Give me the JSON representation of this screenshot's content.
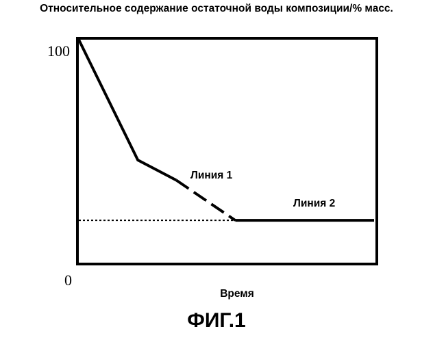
{
  "chart_data": {
    "type": "line",
    "ylabel": "Относительное содержание остаточной воды композиции/% масс.",
    "xlabel": "Время",
    "caption": "ФИГ.1",
    "y_tick_labels": [
      "100",
      "0"
    ],
    "ylim": [
      0,
      100
    ],
    "xlim": [
      0,
      100
    ],
    "grid": false,
    "series": [
      {
        "name": "Линия 1",
        "segments": [
          {
            "style": "solid",
            "points": [
              [
                0,
                100
              ],
              [
                20,
                46
              ],
              [
                33,
                37
              ]
            ]
          },
          {
            "style": "dashed",
            "points": [
              [
                33,
                37
              ],
              [
                53,
                19
              ]
            ]
          }
        ]
      },
      {
        "name": "Линия 2",
        "segments": [
          {
            "style": "dotted",
            "points": [
              [
                0,
                19
              ],
              [
                53,
                19
              ]
            ]
          },
          {
            "style": "solid",
            "points": [
              [
                53,
                19
              ],
              [
                100,
                19
              ]
            ]
          }
        ]
      }
    ]
  }
}
